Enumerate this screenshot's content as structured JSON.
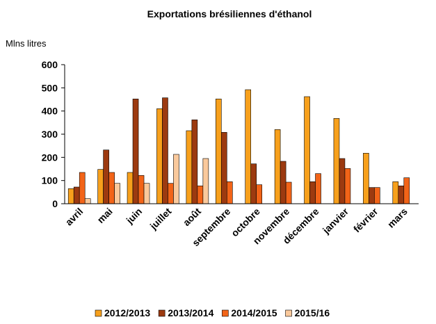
{
  "chart_data": {
    "type": "bar",
    "title": "Exportations brésiliennes d'éthanol",
    "y_label": "Mlns litres",
    "categories": [
      "avril",
      "mai",
      "juin",
      "juillet",
      "août",
      "septembre",
      "octobre",
      "novembre",
      "décembre",
      "janvier",
      "février",
      "mars"
    ],
    "series": [
      {
        "name": "2012/2013",
        "color": "#f7a01c",
        "values": [
          65,
          148,
          135,
          410,
          315,
          452,
          492,
          320,
          462,
          368,
          218,
          95
        ]
      },
      {
        "name": "2013/2014",
        "color": "#9c3a10",
        "values": [
          72,
          232,
          452,
          457,
          362,
          308,
          172,
          183,
          95,
          195,
          70,
          77
        ]
      },
      {
        "name": "2014/2015",
        "color": "#f26418",
        "values": [
          135,
          135,
          122,
          88,
          77,
          95,
          82,
          93,
          130,
          152,
          70,
          112
        ]
      },
      {
        "name": "2015/16",
        "color": "#fac99c",
        "values": [
          22,
          88,
          88,
          213,
          195,
          null,
          null,
          null,
          null,
          null,
          null,
          null
        ]
      }
    ],
    "ylim": [
      0,
      600
    ],
    "yticks": [
      0,
      100,
      200,
      300,
      400,
      500,
      600
    ],
    "grid": false,
    "legend": "bottom"
  }
}
